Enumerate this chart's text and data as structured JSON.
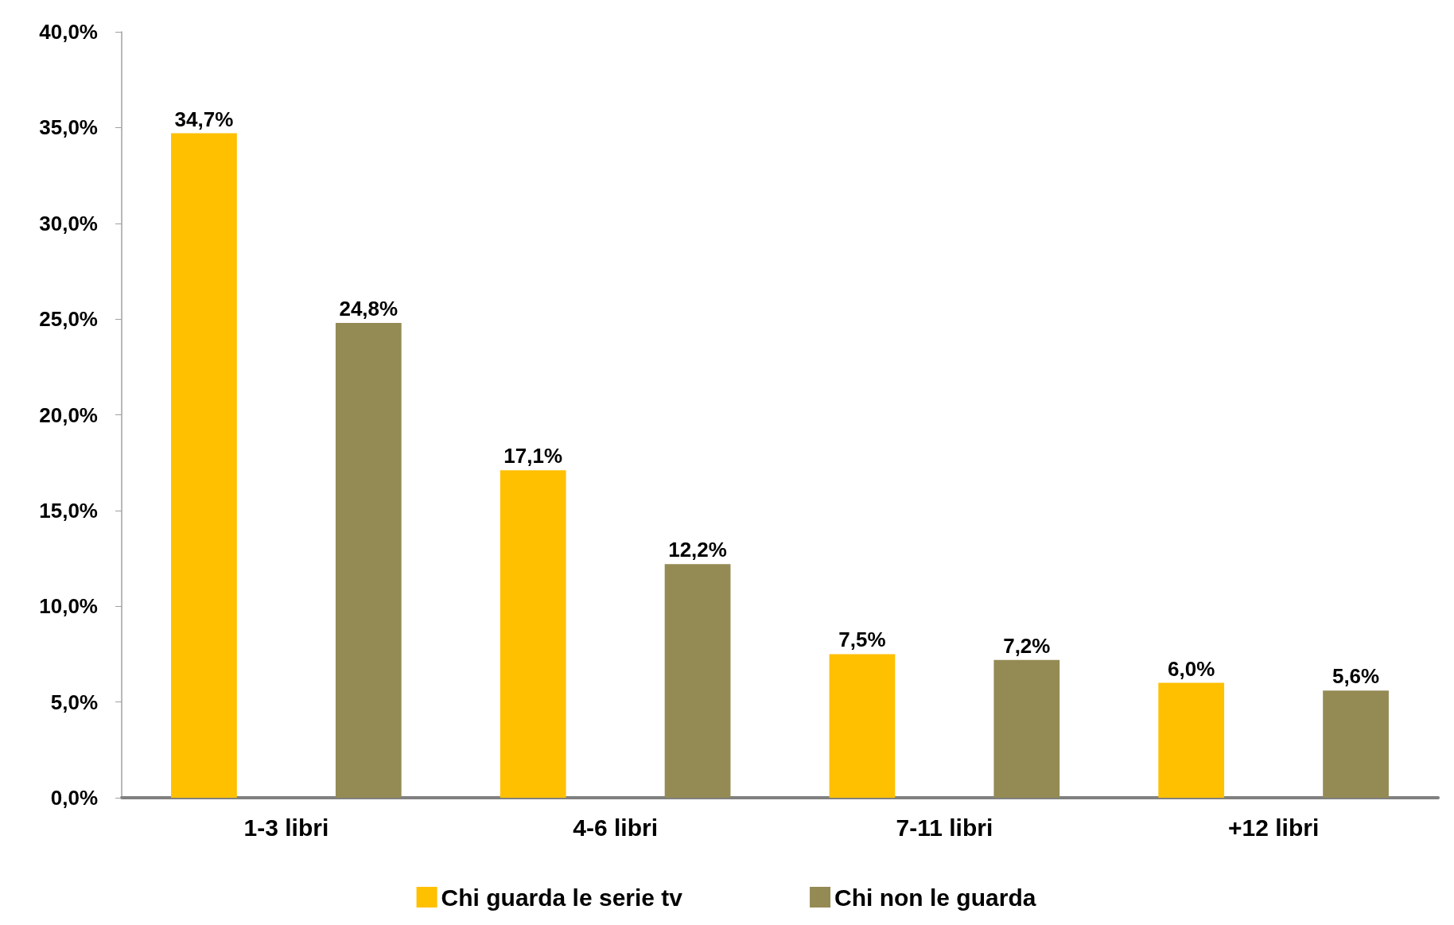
{
  "chart_data": {
    "type": "bar",
    "categories": [
      "1-3 libri",
      "4-6 libri",
      "7-11 libri",
      "+12 libri"
    ],
    "series": [
      {
        "name": "Chi guarda le serie tv",
        "color": "#ffc000",
        "values": [
          34.7,
          17.1,
          7.5,
          6.0
        ],
        "value_labels": [
          "34,7%",
          "17,1%",
          "7,5%",
          "6,0%"
        ]
      },
      {
        "name": "Chi non le guarda",
        "color": "#948a54",
        "values": [
          24.8,
          12.2,
          7.2,
          5.6
        ],
        "value_labels": [
          "24,8%",
          "12,2%",
          "7,2%",
          "5,6%"
        ]
      }
    ],
    "ylim": [
      0,
      40
    ],
    "yticks": [
      {
        "value": 0,
        "label": "0,0%"
      },
      {
        "value": 5,
        "label": "5,0%"
      },
      {
        "value": 10,
        "label": "10,0%"
      },
      {
        "value": 15,
        "label": "15,0%"
      },
      {
        "value": 20,
        "label": "20,0%"
      },
      {
        "value": 25,
        "label": "25,0%"
      },
      {
        "value": 30,
        "label": "30,0%"
      },
      {
        "value": 35,
        "label": "35,0%"
      },
      {
        "value": 40,
        "label": "40,0%"
      }
    ],
    "grid": false,
    "legend": "bottom"
  }
}
